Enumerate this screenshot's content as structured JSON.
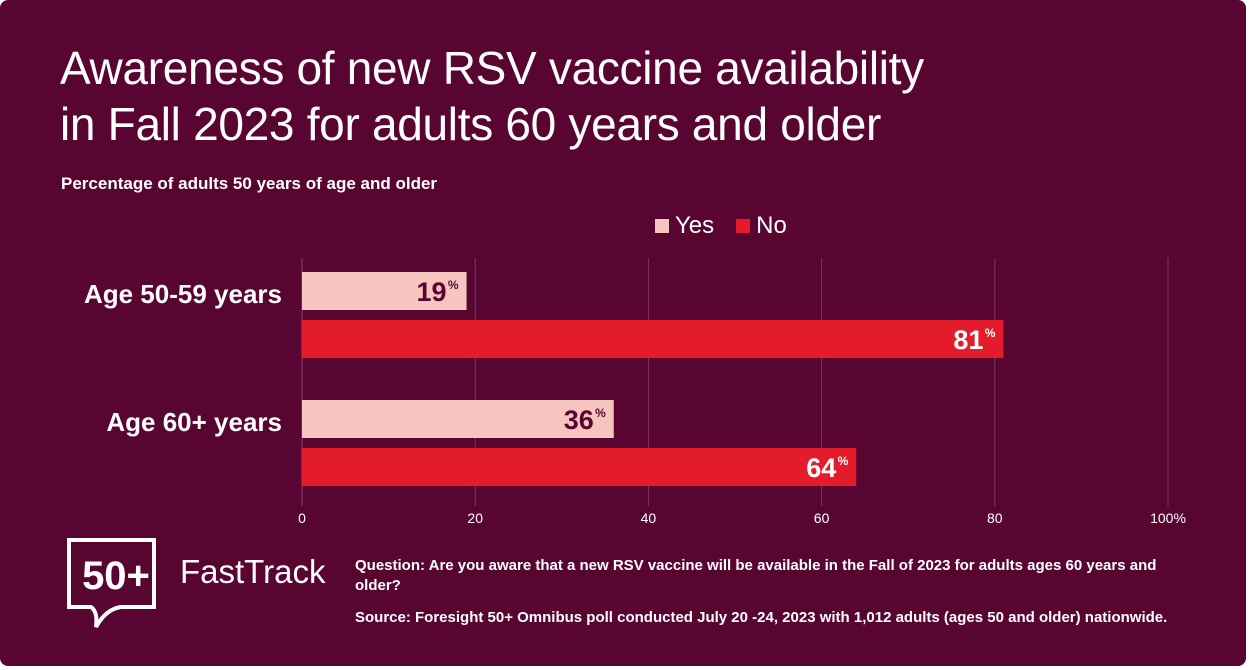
{
  "title_line1": "Awareness of new RSV vaccine availability",
  "title_line2": "in Fall 2023 for adults 60 years and older",
  "subtitle": "Percentage of adults 50 years of age and older",
  "footer": {
    "question": "Question: Are you aware that a new RSV vaccine will be available in the Fall of 2023 for adults ages 60 years and older?",
    "source": "Source: Foresight 50+ Omnibus poll conducted July 20 -24, 2023 with 1,012 adults (ages 50 and older) nationwide.",
    "logo_mark": "50+",
    "logo_text": "FastTrack"
  },
  "colors": {
    "background": "#580532",
    "yes": "#f7c5c0",
    "no": "#e31b2a"
  },
  "chart_data": {
    "type": "bar",
    "orientation": "horizontal",
    "title": "Awareness of new RSV vaccine availability in Fall 2023 for adults 60 years and older",
    "categories": [
      "Age 50-59 years",
      "Age 60+ years"
    ],
    "series": [
      {
        "name": "Yes",
        "values": [
          19,
          36
        ]
      },
      {
        "name": "No",
        "values": [
          81,
          64
        ]
      }
    ],
    "value_suffix": "%",
    "xlim": [
      0,
      100
    ],
    "xticks": [
      "0",
      "20",
      "40",
      "60",
      "80",
      "100%"
    ],
    "grid": true,
    "legend": "top-center"
  }
}
